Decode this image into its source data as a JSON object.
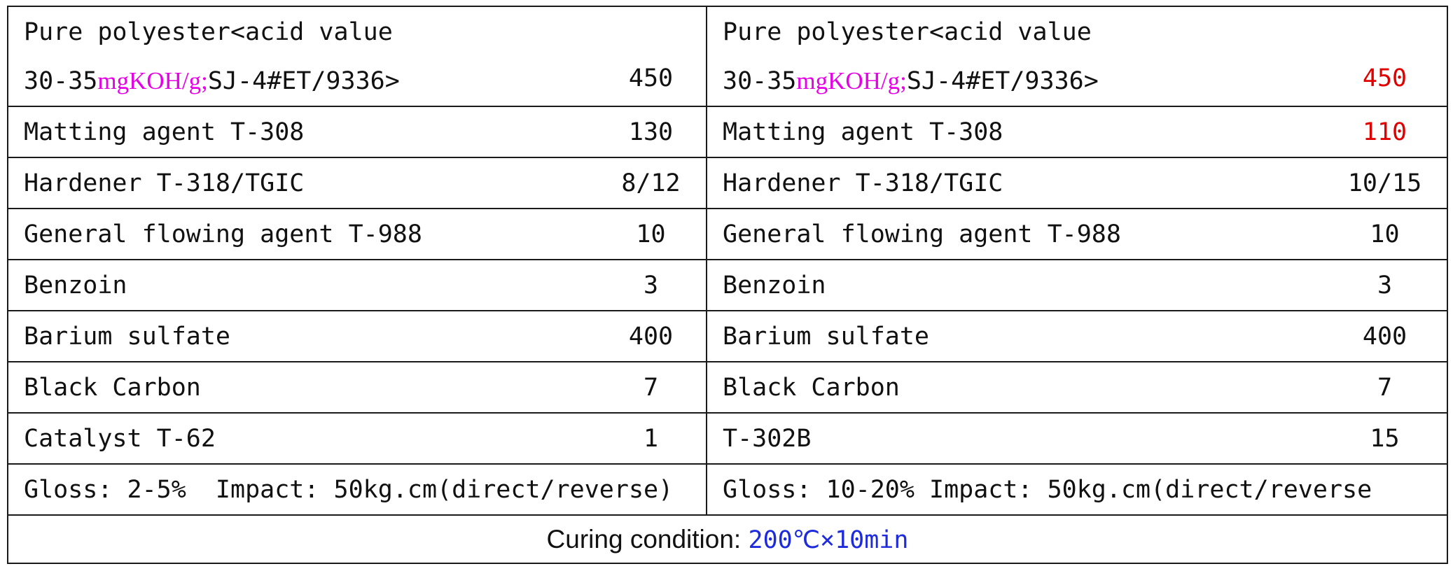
{
  "left": {
    "rows": [
      {
        "name_line1": "Pure polyester<acid value",
        "name_pre": "30-35",
        "name_unit": "mgKOH/g;",
        "name_post": "SJ-4#ET/9336>",
        "value": "450"
      },
      {
        "name": "Matting agent T-308",
        "value": "130"
      },
      {
        "name": "Hardener T-318/TGIC",
        "value": "8/12"
      },
      {
        "name": "General flowing agent T-988",
        "value": "10"
      },
      {
        "name": "Benzoin",
        "value": "3"
      },
      {
        "name": "Barium sulfate",
        "value": "400"
      },
      {
        "name": "Black Carbon",
        "value": "7"
      },
      {
        "name": "Catalyst T-62",
        "value": "1"
      }
    ],
    "summary": "Gloss: 2-5%  Impact: 50kg.cm(direct/reverse)"
  },
  "right": {
    "rows": [
      {
        "name_line1": "Pure polyester<acid value",
        "name_pre": "30-35",
        "name_unit": "mgKOH/g;",
        "name_post": "SJ-4#ET/9336>",
        "value": "450"
      },
      {
        "name": "Matting agent T-308",
        "value": "110"
      },
      {
        "name": "Hardener T-318/TGIC",
        "value": "10/15"
      },
      {
        "name": "General flowing agent T-988",
        "value": "10"
      },
      {
        "name": "Benzoin",
        "value": "3"
      },
      {
        "name": "Barium sulfate",
        "value": "400"
      },
      {
        "name": "Black Carbon",
        "value": "7"
      },
      {
        "name": "T-302B",
        "value": "15"
      }
    ],
    "summary": "Gloss: 10-20% Impact: 50kg.cm(direct/reverse"
  },
  "curing": {
    "label": "Curing condition: ",
    "value": "200℃×10min"
  },
  "colors": {
    "unit_highlight": "#e600e6",
    "changed_value": "#e00000",
    "curing_value": "#1d2bdc"
  }
}
